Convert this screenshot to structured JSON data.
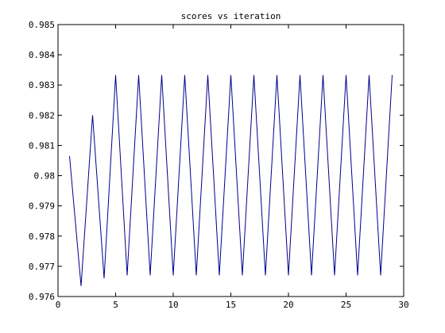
{
  "chart_data": {
    "type": "line",
    "title": "scores vs iteration",
    "xlabel": "",
    "ylabel": "",
    "xlim": [
      0,
      30
    ],
    "ylim": [
      0.976,
      0.985
    ],
    "grid": false,
    "x_ticks": [
      {
        "value": 0,
        "label": "0"
      },
      {
        "value": 5,
        "label": "5"
      },
      {
        "value": 10,
        "label": "10"
      },
      {
        "value": 15,
        "label": "15"
      },
      {
        "value": 20,
        "label": "20"
      },
      {
        "value": 25,
        "label": "25"
      },
      {
        "value": 30,
        "label": "30"
      }
    ],
    "y_ticks": [
      {
        "value": 0.976,
        "label": "0.976"
      },
      {
        "value": 0.977,
        "label": "0.977"
      },
      {
        "value": 0.978,
        "label": "0.978"
      },
      {
        "value": 0.979,
        "label": "0.979"
      },
      {
        "value": 0.98,
        "label": "0.98"
      },
      {
        "value": 0.981,
        "label": "0.981"
      },
      {
        "value": 0.982,
        "label": "0.982"
      },
      {
        "value": 0.983,
        "label": "0.983"
      },
      {
        "value": 0.984,
        "label": "0.984"
      },
      {
        "value": 0.985,
        "label": "0.985"
      }
    ],
    "series": [
      {
        "name": "scores",
        "color": "#00008f",
        "x": [
          1,
          2,
          3,
          4,
          5,
          6,
          7,
          8,
          9,
          10,
          11,
          12,
          13,
          14,
          15,
          16,
          17,
          18,
          19,
          20,
          21,
          22,
          23,
          24,
          25,
          26,
          27,
          28,
          29
        ],
        "y": [
          0.98065,
          0.97635,
          0.982,
          0.9766,
          0.98333,
          0.9767,
          0.98333,
          0.9767,
          0.98333,
          0.9767,
          0.98333,
          0.9767,
          0.98333,
          0.9767,
          0.98333,
          0.9767,
          0.98333,
          0.9767,
          0.98333,
          0.9767,
          0.98333,
          0.9767,
          0.98333,
          0.9767,
          0.98333,
          0.9767,
          0.98333,
          0.9767,
          0.98333
        ]
      }
    ]
  }
}
